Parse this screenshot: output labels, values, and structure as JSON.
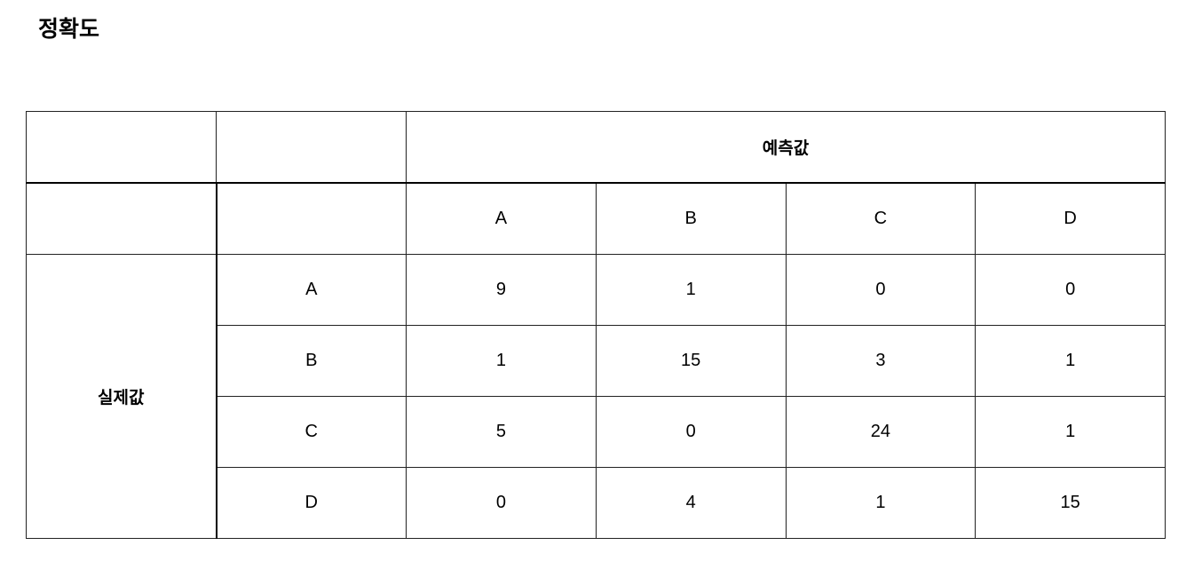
{
  "title": "정확도",
  "table": {
    "predicted_label": "예측값",
    "actual_label": "실제값",
    "predicted_classes": [
      "A",
      "B",
      "C",
      "D"
    ],
    "rows": [
      {
        "actual": "A",
        "values": [
          "9",
          "1",
          "0",
          "0"
        ]
      },
      {
        "actual": "B",
        "values": [
          "1",
          "15",
          "3",
          "1"
        ]
      },
      {
        "actual": "C",
        "values": [
          "5",
          "0",
          "24",
          "1"
        ]
      },
      {
        "actual": "D",
        "values": [
          "0",
          "4",
          "1",
          "15"
        ]
      }
    ]
  }
}
